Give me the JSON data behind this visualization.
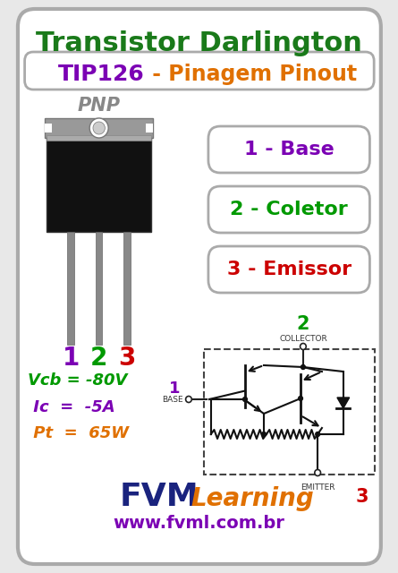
{
  "bg_color": "#e8e8e8",
  "card_bg": "#ffffff",
  "card_border": "#aaaaaa",
  "title1": "Transistor Darlington",
  "title1_color": "#1a7a1a",
  "title2_left": "TIP126",
  "title2_left_color": "#7b00b4",
  "title2_right": " - Pinagem Pinout",
  "title2_right_color": "#e07000",
  "pnp_label": "PNP",
  "pnp_color": "#888888",
  "pin_labels": [
    "1 - Base",
    "2 - Coletor",
    "3 - Emissor"
  ],
  "pin_colors": [
    "#7b00b4",
    "#009900",
    "#cc0000"
  ],
  "pin_numbers_colors": [
    "#7b00b4",
    "#009900",
    "#cc0000"
  ],
  "pin_numbers": [
    "1",
    "2",
    "3"
  ],
  "specs": [
    "Vcb = -80V",
    " Ic  =  -5A",
    " Pt  =  65W"
  ],
  "specs_colors": [
    "#009900",
    "#7b00b4",
    "#e07000"
  ],
  "fvm_color": "#1a237e",
  "learning_color": "#e07000",
  "url_color": "#7b00b4",
  "collector_label": "COLLECTOR",
  "emitter_label": "EMITTER",
  "base_label": "BASE",
  "num2_color": "#009900",
  "num3_color": "#cc0000",
  "num1_color": "#7b00b4",
  "transistor_body_color": "#111111",
  "transistor_tab_color": "#999999",
  "transistor_tab_edge": "#777777",
  "pin_wire_color": "#888888"
}
